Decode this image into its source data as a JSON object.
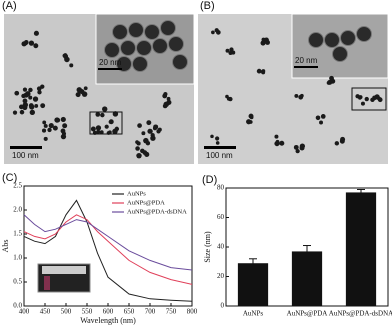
{
  "images": [
    {
      "label": "(A)",
      "scale_bar": "100 nm",
      "inset_scale_bar": "20 nm"
    },
    {
      "label": "(B)",
      "scale_bar": "100 nm",
      "inset_scale_bar": "20 nm"
    }
  ],
  "chart_data": [
    {
      "type": "line",
      "panel_label": "(C)",
      "xlabel": "Wavelength (nm)",
      "ylabel": "Abs",
      "x": [
        400,
        425,
        450,
        475,
        500,
        525,
        550,
        575,
        600,
        650,
        700,
        750,
        800
      ],
      "series": [
        {
          "name": "AuNPs",
          "color": "#222222",
          "values": [
            1.45,
            1.35,
            1.3,
            1.45,
            1.9,
            2.2,
            1.75,
            1.1,
            0.6,
            0.25,
            0.15,
            0.12,
            0.1
          ]
        },
        {
          "name": "AuNPs@PDA",
          "color": "#e0405a",
          "values": [
            1.55,
            1.45,
            1.4,
            1.5,
            1.75,
            1.9,
            1.8,
            1.55,
            1.35,
            0.95,
            0.7,
            0.55,
            0.45
          ]
        },
        {
          "name": "AuNPs@PDA-dsDNA",
          "color": "#6a4c9c",
          "values": [
            1.9,
            1.7,
            1.55,
            1.6,
            1.7,
            1.8,
            1.75,
            1.6,
            1.45,
            1.15,
            0.95,
            0.8,
            0.75
          ]
        }
      ],
      "xlim": [
        400,
        800
      ],
      "xticks": [
        400,
        450,
        500,
        550,
        600,
        650,
        700,
        750,
        800
      ],
      "ylim": [
        0,
        2.5
      ],
      "yticks": [
        {
          "value": 0,
          "label": "0.0"
        },
        0.5,
        {
          "value": 1,
          "label": "1.0"
        },
        1.5,
        {
          "value": 2,
          "label": "2.0"
        },
        2.5
      ],
      "legend": "upper right"
    },
    {
      "type": "bar",
      "panel_label": "(D)",
      "ylabel": "Size (nm)",
      "categories": [
        "AuNPs",
        "AuNPs@PDA",
        "AuNPs@PDA-dsDNA"
      ],
      "values": [
        29,
        37,
        77
      ],
      "errors": [
        3,
        4,
        2
      ],
      "color": "#111111",
      "ylim": [
        0,
        80
      ],
      "yticks": [
        0,
        20,
        40,
        60,
        80
      ]
    }
  ]
}
